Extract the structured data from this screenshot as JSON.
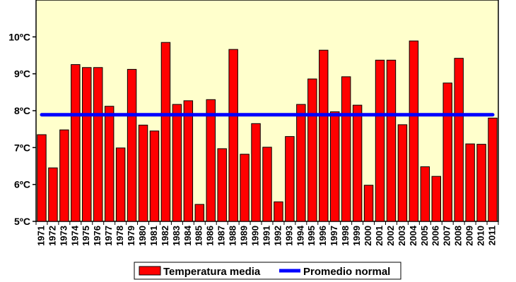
{
  "chart_data": {
    "type": "bar",
    "title": "",
    "xlabel": "",
    "ylabel": "",
    "ylim": [
      5,
      11
    ],
    "y_ticks": [
      5,
      6,
      7,
      8,
      9,
      10
    ],
    "y_tick_labels": [
      "5ºC",
      "6ºC",
      "7ºC",
      "8ºC",
      "9ºC",
      "10ºC"
    ],
    "plot_background": "#ffffcc",
    "grid": false,
    "legend_position": "bottom",
    "categories": [
      "1971",
      "1972",
      "1973",
      "1974",
      "1975",
      "1976",
      "1977",
      "1978",
      "1979",
      "1980",
      "1981",
      "1982",
      "1983",
      "1984",
      "1985",
      "1986",
      "1987",
      "1988",
      "1989",
      "1990",
      "1991",
      "1992",
      "1993",
      "1994",
      "1995",
      "1996",
      "1997",
      "1998",
      "1999",
      "2000",
      "2001",
      "2002",
      "2003",
      "2004",
      "2005",
      "2006",
      "2007",
      "2008",
      "2009",
      "2010",
      "2011"
    ],
    "series": [
      {
        "name": "Temperatura media",
        "type": "bar",
        "color": "#ff0000",
        "values": [
          7.35,
          6.45,
          7.48,
          9.25,
          9.17,
          9.17,
          8.12,
          6.99,
          9.12,
          7.61,
          7.45,
          9.85,
          8.17,
          8.27,
          5.46,
          8.3,
          6.97,
          9.66,
          6.82,
          7.65,
          7.01,
          5.53,
          7.3,
          8.17,
          8.86,
          9.64,
          7.97,
          8.92,
          8.15,
          5.98,
          9.37,
          9.37,
          7.62,
          9.89,
          6.48,
          6.22,
          8.75,
          9.42,
          7.1,
          7.09,
          7.8
        ]
      },
      {
        "name": "Promedio normal",
        "type": "line",
        "color": "#0000ff",
        "value": 7.89
      }
    ]
  }
}
